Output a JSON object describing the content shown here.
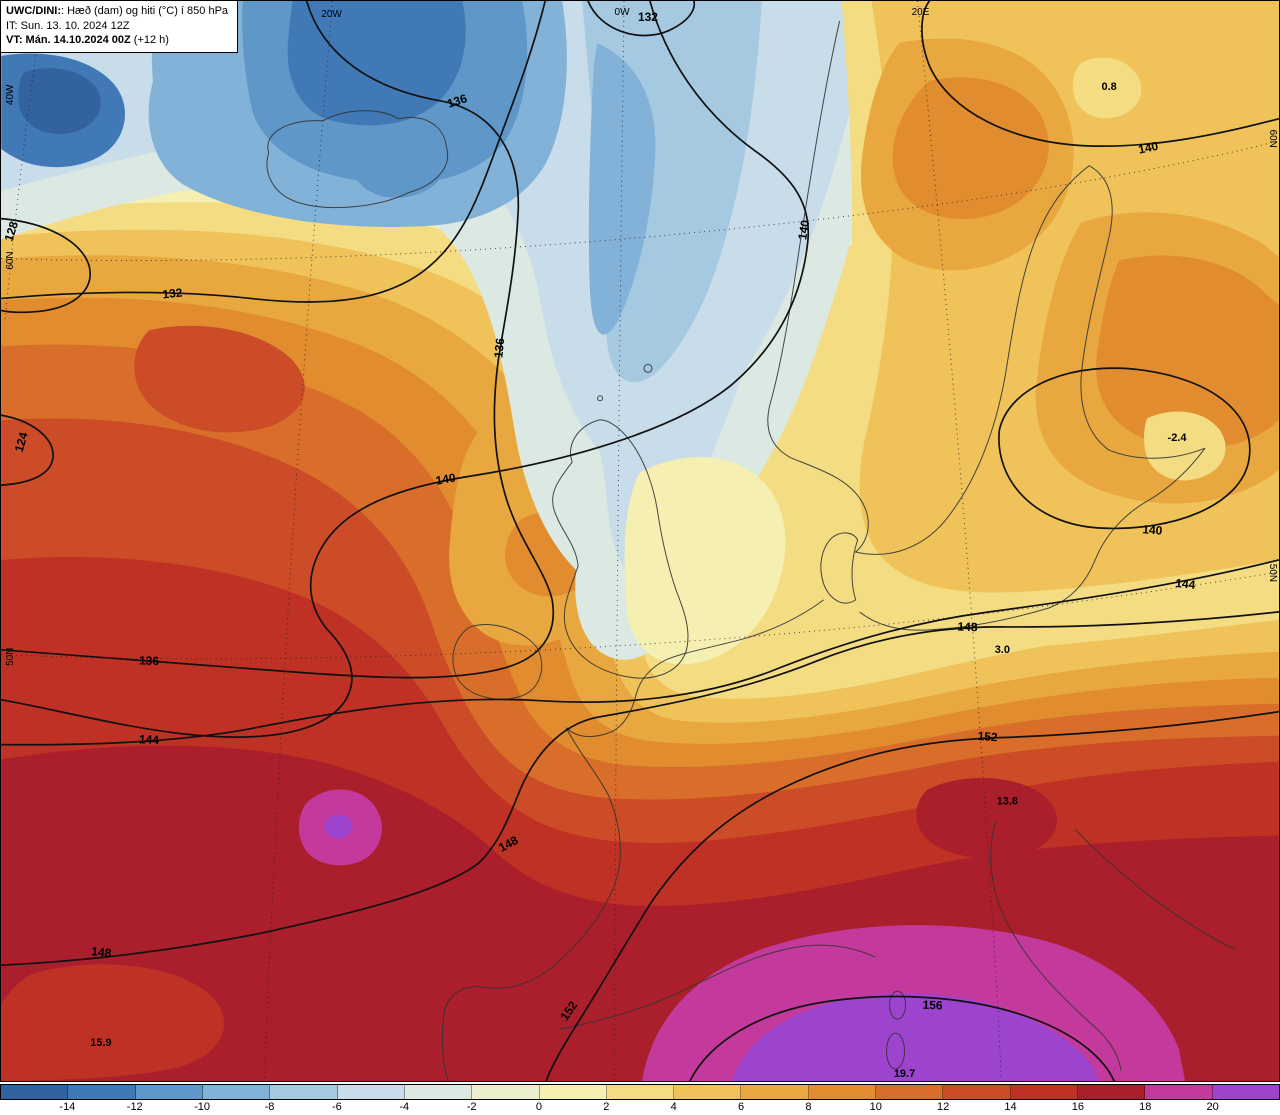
{
  "header": {
    "model": "UWC/DINI:",
    "product": ": Hæð (dam) og hiti (°C) í 850 hPa",
    "init": "IT: Sun. 13. 10. 2024 12Z",
    "valid_bold": "VT: Mán. 14.10.2024 00Z",
    "valid_rest": " (+12 h)"
  },
  "map": {
    "graticule_labels": [
      "20W",
      "0W",
      "20E",
      "40W",
      "60N",
      "50N",
      "60N",
      "50N"
    ],
    "contour_labels": [
      "132",
      "136",
      "128",
      "132",
      "136",
      "140",
      "124",
      "140",
      "140",
      "140",
      "144",
      "136",
      "148",
      "144",
      "152",
      "148",
      "148",
      "152",
      "156"
    ],
    "spot_values": [
      "0.8",
      "-2.4",
      "3.0",
      "13.8",
      "15.9",
      "19.7"
    ]
  },
  "colorbar": {
    "tick_labels": [
      "-14",
      "-12",
      "-10",
      "-8",
      "-6",
      "-4",
      "-2",
      "0",
      "2",
      "4",
      "6",
      "8",
      "10",
      "12",
      "14",
      "16",
      "18",
      "20"
    ],
    "colors": [
      "#33639e",
      "#4079b6",
      "#5e97c8",
      "#82b2d8",
      "#a6c9e2",
      "#c8dcea",
      "#dce9e2",
      "#ebefcd",
      "#f6efb2",
      "#f3dc82",
      "#efc35a",
      "#e9a83f",
      "#e18c2e",
      "#d96e2a",
      "#cc4c27",
      "#bf3124",
      "#aa1f2b",
      "#c43a9c",
      "#9d44cf"
    ]
  }
}
